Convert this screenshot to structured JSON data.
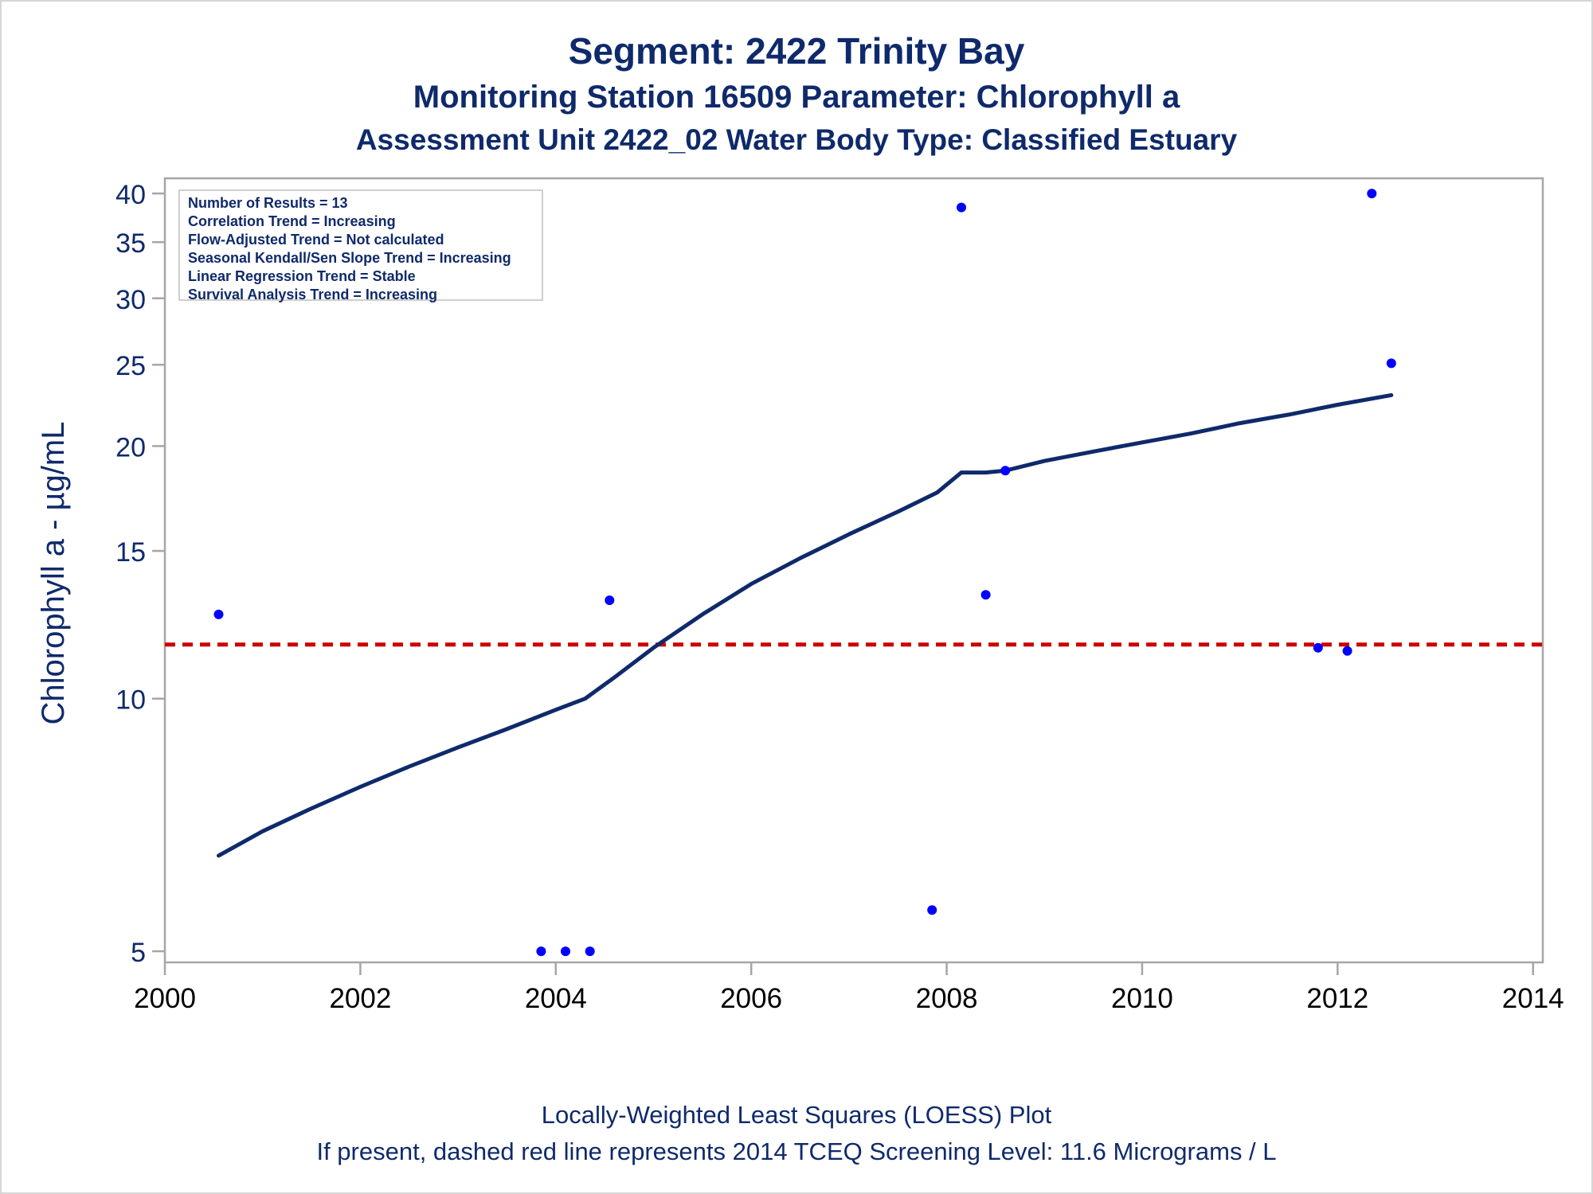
{
  "titles": {
    "line1": "Segment: 2422  Trinity Bay",
    "line2": "Monitoring Station 16509 Parameter: Chlorophyll a",
    "line3": "Assessment Unit 2422_02   Water Body Type: Classified Estuary"
  },
  "stats": [
    "Number of Results = 13",
    "Correlation Trend = Increasing",
    "Flow-Adjusted Trend = Not calculated",
    "Seasonal Kendall/Sen Slope Trend = Increasing",
    "Linear Regression Trend = Stable",
    "Survival Analysis Trend = Increasing"
  ],
  "footer": {
    "line1": "Locally-Weighted Least Squares (LOESS) Plot",
    "line2": "If present, dashed red line represents 2014 TCEQ Screening Level: 11.6 Micrograms / L"
  },
  "colors": {
    "text": "#0f2a6b",
    "points": "#0000ff",
    "loess": "#0f2a6b",
    "screening": "#cc0000",
    "axis": "#a6a6a6"
  },
  "chart_data": {
    "type": "scatter",
    "ylabel": "Chlorophyll a -  µg/mL",
    "xlabel": "",
    "x_ticks": [
      2000,
      2002,
      2004,
      2006,
      2008,
      2010,
      2012,
      2014
    ],
    "y_ticks": [
      5,
      10,
      15,
      20,
      25,
      30,
      35,
      40
    ],
    "y_scale": "log",
    "xlim": [
      2000,
      2014.1
    ],
    "ylim": [
      4.85,
      41.7
    ],
    "legend": "none",
    "grid": false,
    "points": [
      {
        "x": 2000.55,
        "y": 12.6
      },
      {
        "x": 2003.85,
        "y": 5.0
      },
      {
        "x": 2004.1,
        "y": 5.0
      },
      {
        "x": 2004.35,
        "y": 5.0
      },
      {
        "x": 2004.55,
        "y": 13.1
      },
      {
        "x": 2007.85,
        "y": 5.6
      },
      {
        "x": 2008.15,
        "y": 38.5
      },
      {
        "x": 2008.4,
        "y": 13.3
      },
      {
        "x": 2008.6,
        "y": 18.7
      },
      {
        "x": 2011.8,
        "y": 11.5
      },
      {
        "x": 2012.1,
        "y": 11.4
      },
      {
        "x": 2012.35,
        "y": 40.0
      },
      {
        "x": 2012.55,
        "y": 25.1
      }
    ],
    "series": [
      {
        "type": "line",
        "x": [
          2000.55,
          2001.0,
          2001.5,
          2002.0,
          2002.5,
          2003.0,
          2003.5,
          2004.0,
          2004.3,
          2004.6,
          2005.0,
          2005.5,
          2006.0,
          2006.5,
          2007.0,
          2007.5,
          2007.9,
          2008.15,
          2008.4,
          2008.6,
          2009.0,
          2009.5,
          2010.0,
          2010.5,
          2011.0,
          2011.5,
          2012.0,
          2012.55
        ],
        "y": [
          6.5,
          6.95,
          7.4,
          7.85,
          8.3,
          8.75,
          9.2,
          9.7,
          10.0,
          10.6,
          11.5,
          12.6,
          13.7,
          14.7,
          15.7,
          16.7,
          17.6,
          18.6,
          18.6,
          18.7,
          19.2,
          19.7,
          20.2,
          20.7,
          21.3,
          21.8,
          22.4,
          23.0
        ]
      },
      {
        "type": "reference-line",
        "y": 11.6
      }
    ]
  }
}
